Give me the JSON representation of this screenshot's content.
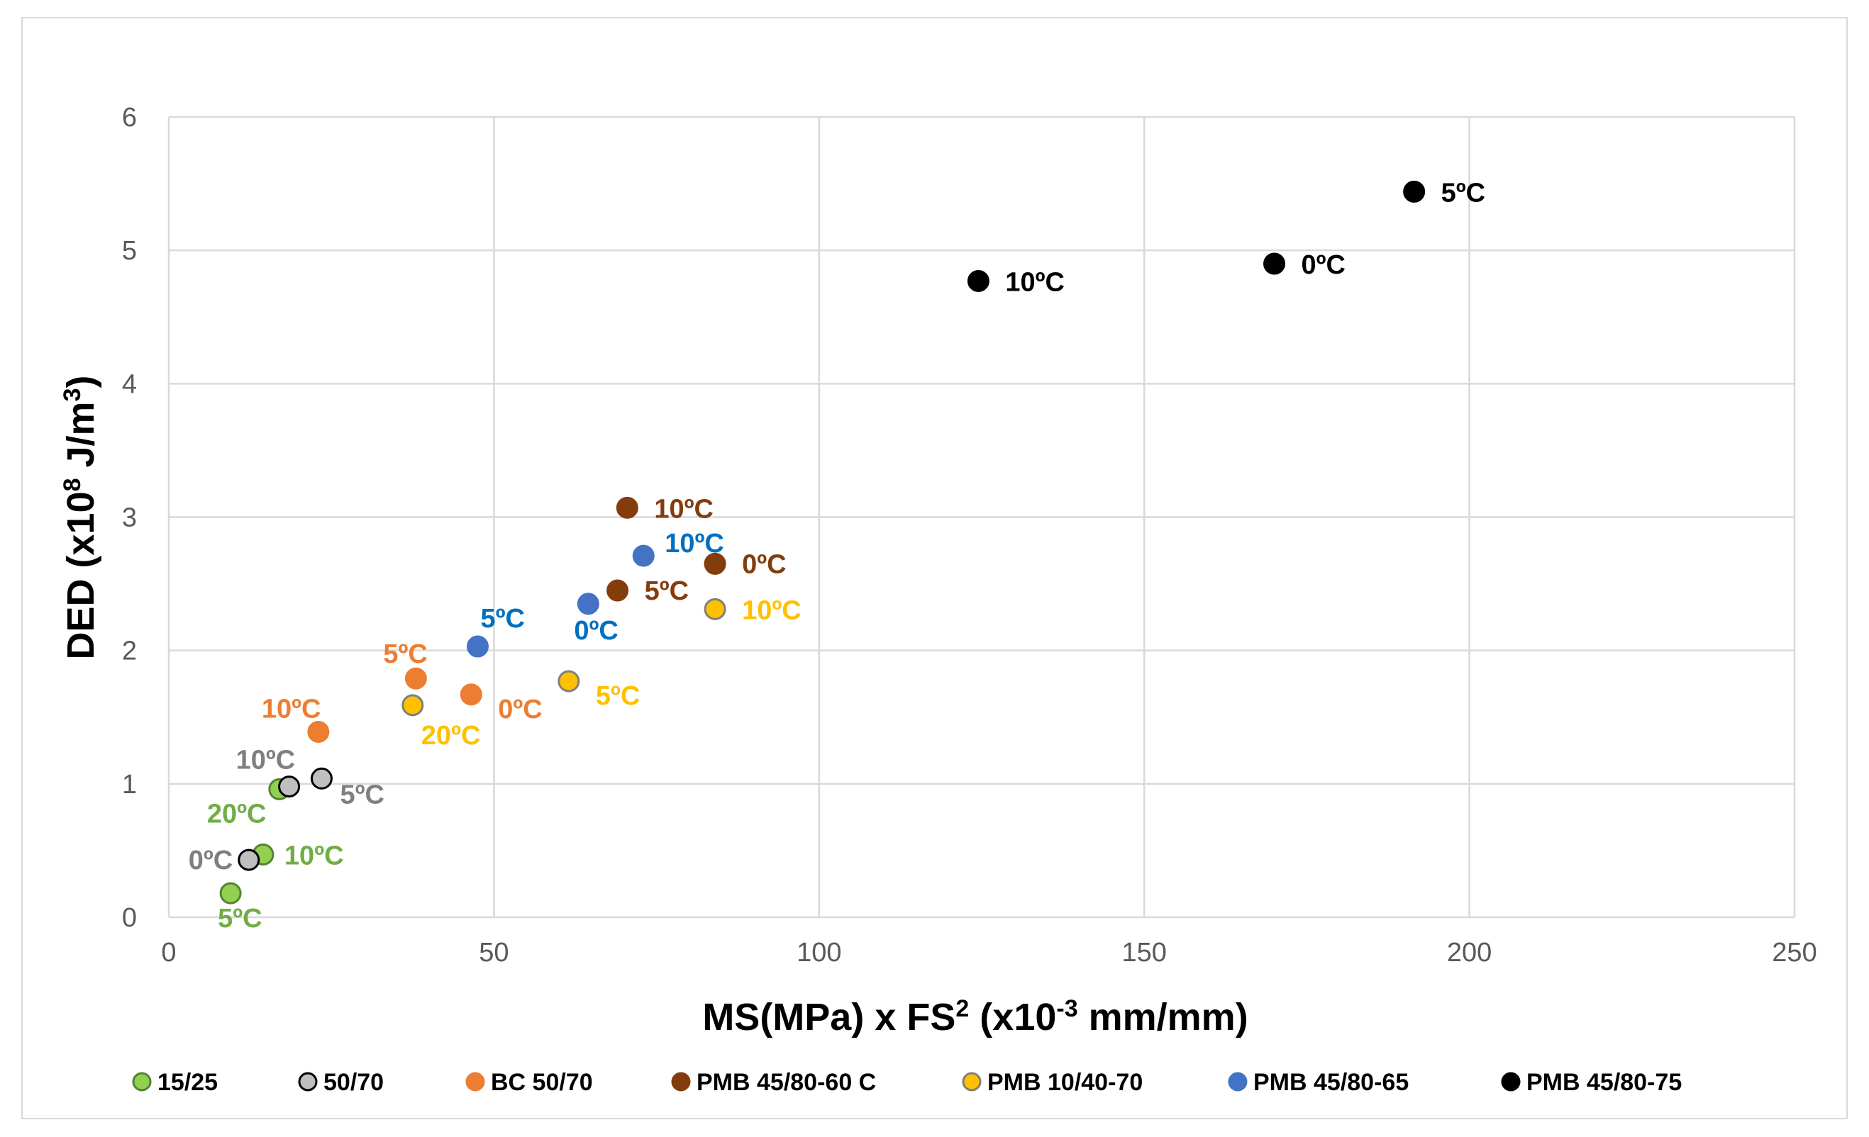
{
  "chart_data": {
    "type": "scatter",
    "xlabel": "MS(MPa) x FS² (x10⁻³ mm/mm)",
    "ylabel": "DED (x10⁸ J/m³)",
    "xlim": [
      0,
      250
    ],
    "ylim": [
      0,
      6
    ],
    "x_ticks": [
      "0",
      "50",
      "100",
      "150",
      "200",
      "250"
    ],
    "y_ticks": [
      "0",
      "1",
      "2",
      "3",
      "4",
      "5",
      "6"
    ],
    "grid": true,
    "legend_position": "bottom",
    "series": [
      {
        "name": "15/25",
        "color": "#92d050",
        "edge": "#548235",
        "label_color": "#70ad47",
        "points": [
          {
            "x": 9.5,
            "y": 0.18,
            "label": "5ºC"
          },
          {
            "x": 14.5,
            "y": 0.47,
            "label": "10ºC"
          },
          {
            "x": 17,
            "y": 0.96,
            "label": "20ºC"
          }
        ]
      },
      {
        "name": "50/70",
        "color": "#bfbfbf",
        "edge": "#000000",
        "label_color": "#7f7f7f",
        "points": [
          {
            "x": 12.3,
            "y": 0.43,
            "label": "0ºC"
          },
          {
            "x": 18.5,
            "y": 0.98,
            "label": "10ºC"
          },
          {
            "x": 23.5,
            "y": 1.04,
            "label": "5ºC"
          }
        ]
      },
      {
        "name": "BC 50/70",
        "color": "#ed7d31",
        "edge": "#ed7d31",
        "label_color": "#ed7d31",
        "points": [
          {
            "x": 23,
            "y": 1.39,
            "label": "10ºC"
          },
          {
            "x": 38,
            "y": 1.79,
            "label": "5ºC"
          },
          {
            "x": 46.5,
            "y": 1.67,
            "label": "0ºC"
          }
        ]
      },
      {
        "name": "PMB 45/80-60 C",
        "color": "#843c0c",
        "edge": "#843c0c",
        "label_color": "#843c0c",
        "points": [
          {
            "x": 70.5,
            "y": 3.07,
            "label": "10ºC"
          },
          {
            "x": 69,
            "y": 2.45,
            "label": "5ºC"
          },
          {
            "x": 84,
            "y": 2.65,
            "label": "0ºC"
          }
        ]
      },
      {
        "name": "PMB 10/40-70",
        "color": "#ffc000",
        "edge": "#7f7f7f",
        "label_color": "#ffc000",
        "points": [
          {
            "x": 37.5,
            "y": 1.59,
            "label": "20ºC"
          },
          {
            "x": 61.5,
            "y": 1.77,
            "label": "5ºC"
          },
          {
            "x": 84,
            "y": 2.31,
            "label": "10ºC"
          }
        ]
      },
      {
        "name": "PMB 45/80-65",
        "color": "#4472c4",
        "edge": "#4472c4",
        "label_color": "#0070c0",
        "points": [
          {
            "x": 47.5,
            "y": 2.03,
            "label": "5ºC"
          },
          {
            "x": 64.5,
            "y": 2.35,
            "label": "0ºC"
          },
          {
            "x": 73,
            "y": 2.71,
            "label": "10ºC"
          }
        ]
      },
      {
        "name": "PMB 45/80-75",
        "color": "#000000",
        "edge": "#000000",
        "label_color": "#000000",
        "points": [
          {
            "x": 124.5,
            "y": 4.77,
            "label": "10ºC"
          },
          {
            "x": 170,
            "y": 4.9,
            "label": "0ºC"
          },
          {
            "x": 191.5,
            "y": 5.44,
            "label": "5ºC"
          }
        ]
      }
    ]
  }
}
